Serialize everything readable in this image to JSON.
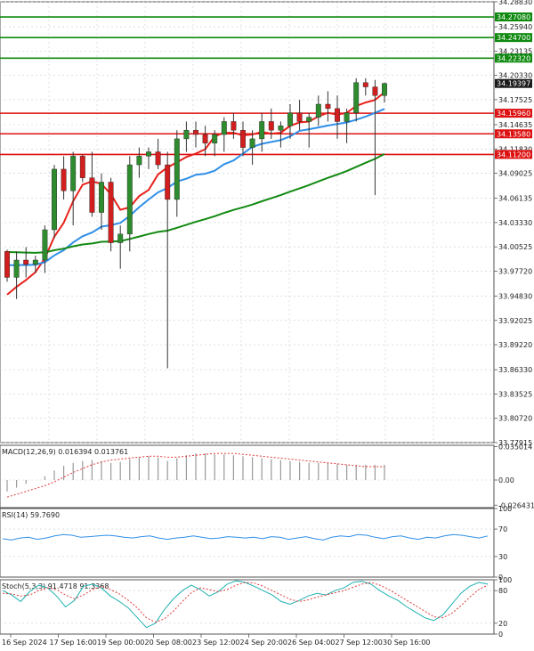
{
  "colors": {
    "background": "#ffffff",
    "grid": "#c8ccd4",
    "bull": "#2e8b2e",
    "bear": "#d11f1f",
    "wick": "#333333",
    "ma_red": "#e8211b",
    "ma_blue": "#2f8fe8",
    "ma_green": "#138a13",
    "level_green": "#0f8a0f",
    "level_red": "#dd1111",
    "current_box": "#1a1a1a",
    "macd_hist": "#9a9a9a",
    "macd_signal": "#e23b3b",
    "rsi_line": "#2f8fe8",
    "stoch_main": "#20b0b0",
    "stoch_signal": "#e23b3b"
  },
  "chart_data": {
    "type": "candlestick",
    "main": {
      "ylim": [
        33.77915,
        34.2883
      ],
      "price_ticks": [
        "34.28830",
        "34.25940",
        "34.23135",
        "34.20330",
        "34.17525",
        "34.14635",
        "34.11830",
        "34.09025",
        "34.06135",
        "34.03330",
        "34.00525",
        "33.97720",
        "33.94830",
        "33.92025",
        "33.89220",
        "33.86330",
        "33.83525",
        "33.80720",
        "33.77915"
      ],
      "levels_green": [
        34.2708,
        34.247,
        34.2232
      ],
      "levels_red": [
        34.1596,
        34.1358,
        34.112
      ],
      "current_price": 34.19397,
      "candles": [
        [
          34.0,
          34.002,
          33.965,
          33.97
        ],
        [
          33.97,
          34.0,
          33.945,
          33.99
        ],
        [
          33.99,
          34.005,
          33.97,
          33.985
        ],
        [
          33.985,
          33.995,
          33.975,
          33.99
        ],
        [
          33.99,
          34.03,
          33.975,
          34.025
        ],
        [
          34.025,
          34.1,
          34.015,
          34.095
        ],
        [
          34.095,
          34.11,
          34.06,
          34.07
        ],
        [
          34.07,
          34.115,
          34.03,
          34.11
        ],
        [
          34.11,
          34.112,
          34.08,
          34.085
        ],
        [
          34.085,
          34.115,
          34.04,
          34.045
        ],
        [
          34.045,
          34.09,
          34.025,
          34.08
        ],
        [
          34.08,
          34.085,
          34.0,
          34.01
        ],
        [
          34.01,
          34.03,
          33.98,
          34.02
        ],
        [
          34.02,
          34.11,
          34.0,
          34.1
        ],
        [
          34.1,
          34.12,
          34.085,
          34.11
        ],
        [
          34.11,
          34.12,
          34.095,
          34.115
        ],
        [
          34.115,
          34.13,
          34.095,
          34.1
        ],
        [
          34.1,
          34.115,
          33.865,
          34.06
        ],
        [
          34.06,
          34.14,
          34.04,
          34.13
        ],
        [
          34.13,
          34.15,
          34.115,
          34.14
        ],
        [
          34.14,
          34.15,
          34.12,
          34.135
        ],
        [
          34.135,
          34.145,
          34.11,
          34.125
        ],
        [
          34.125,
          34.14,
          34.11,
          34.135
        ],
        [
          34.135,
          34.155,
          34.115,
          34.15
        ],
        [
          34.15,
          34.16,
          34.13,
          34.14
        ],
        [
          34.14,
          34.15,
          34.11,
          34.12
        ],
        [
          34.12,
          34.14,
          34.1,
          34.13
        ],
        [
          34.13,
          34.16,
          34.115,
          34.15
        ],
        [
          34.15,
          34.165,
          34.13,
          34.14
        ],
        [
          34.14,
          34.15,
          34.12,
          34.145
        ],
        [
          34.145,
          34.17,
          34.13,
          34.16
        ],
        [
          34.16,
          34.175,
          34.14,
          34.15
        ],
        [
          34.15,
          34.16,
          34.12,
          34.155
        ],
        [
          34.155,
          34.18,
          34.145,
          34.17
        ],
        [
          34.17,
          34.185,
          34.15,
          34.165
        ],
        [
          34.165,
          34.18,
          34.13,
          34.15
        ],
        [
          34.15,
          34.165,
          34.125,
          34.16
        ],
        [
          34.16,
          34.2,
          34.15,
          34.195
        ],
        [
          34.195,
          34.2,
          34.18,
          34.19
        ],
        [
          34.19,
          34.198,
          34.065,
          34.18
        ],
        [
          34.18,
          34.195,
          34.172,
          34.194
        ]
      ]
    },
    "macd": {
      "label": "MACD(12,26,9) 0.016394 0.013761",
      "ticks": [
        "0.035014",
        "0.00",
        "-0.026431"
      ],
      "ylim": [
        -0.029,
        0.0365
      ],
      "hist": [
        -0.012,
        -0.008,
        -0.004,
        0.0,
        0.004,
        0.01,
        0.015,
        0.018,
        0.02,
        0.021,
        0.02,
        0.018,
        0.019,
        0.022,
        0.024,
        0.025,
        0.024,
        0.02,
        0.023,
        0.026,
        0.028,
        0.028,
        0.027,
        0.027,
        0.026,
        0.025,
        0.024,
        0.023,
        0.022,
        0.021,
        0.02,
        0.019,
        0.018,
        0.018,
        0.018,
        0.017,
        0.016,
        0.016,
        0.016,
        0.016,
        0.016
      ],
      "signal": [
        -0.018,
        -0.015,
        -0.012,
        -0.009,
        -0.006,
        -0.002,
        0.003,
        0.008,
        0.012,
        0.016,
        0.019,
        0.021,
        0.022,
        0.023,
        0.024,
        0.025,
        0.025,
        0.024,
        0.024,
        0.025,
        0.026,
        0.027,
        0.028,
        0.028,
        0.028,
        0.027,
        0.026,
        0.025,
        0.024,
        0.023,
        0.022,
        0.021,
        0.02,
        0.019,
        0.018,
        0.017,
        0.016,
        0.015,
        0.014,
        0.014,
        0.014
      ]
    },
    "rsi": {
      "label": "RSI(14) 59.7690",
      "ticks": [
        "100",
        "70",
        "30",
        "0"
      ],
      "ylim": [
        0,
        100
      ],
      "values": [
        56,
        54,
        57,
        58,
        55,
        57,
        60,
        62,
        61,
        58,
        59,
        60,
        61,
        60,
        58,
        57,
        59,
        60,
        57,
        55,
        57,
        58,
        60,
        58,
        56,
        57,
        59,
        58,
        57,
        58,
        56,
        59,
        58,
        55,
        57,
        59,
        56,
        54,
        58,
        60,
        59,
        62,
        61,
        58,
        56,
        59,
        60,
        57,
        55,
        58,
        57,
        60,
        62,
        61,
        59,
        57,
        60
      ]
    },
    "stoch": {
      "label": "Stoch(5,3,3) 91.4718 91.3368",
      "ticks": [
        "100",
        "80",
        "20",
        "0"
      ],
      "ylim": [
        0,
        100
      ],
      "main": [
        80,
        72,
        60,
        78,
        90,
        85,
        70,
        50,
        62,
        88,
        92,
        85,
        70,
        60,
        48,
        30,
        12,
        20,
        45,
        65,
        80,
        90,
        82,
        70,
        78,
        92,
        98,
        95,
        88,
        80,
        72,
        60,
        55,
        62,
        70,
        75,
        72,
        80,
        85,
        95,
        97,
        92,
        80,
        70,
        62,
        50,
        40,
        30,
        25,
        35,
        55,
        75,
        88,
        95,
        92
      ],
      "signal": [
        75,
        74,
        70,
        72,
        80,
        85,
        82,
        72,
        65,
        72,
        82,
        88,
        82,
        74,
        62,
        48,
        30,
        22,
        28,
        42,
        60,
        76,
        85,
        82,
        78,
        82,
        90,
        95,
        94,
        88,
        80,
        72,
        64,
        60,
        63,
        68,
        72,
        76,
        80,
        86,
        92,
        95,
        90,
        82,
        72,
        62,
        52,
        42,
        32,
        30,
        38,
        52,
        68,
        82,
        90
      ]
    },
    "x_labels": [
      "16 Sep 2024",
      "17 Sep 16:00",
      "19 Sep 00:00",
      "20 Sep 08:00",
      "23 Sep 12:00",
      "24 Sep 20:00",
      "26 Sep 04:00",
      "27 Sep 12:00",
      "30 Sep 16:00"
    ]
  }
}
